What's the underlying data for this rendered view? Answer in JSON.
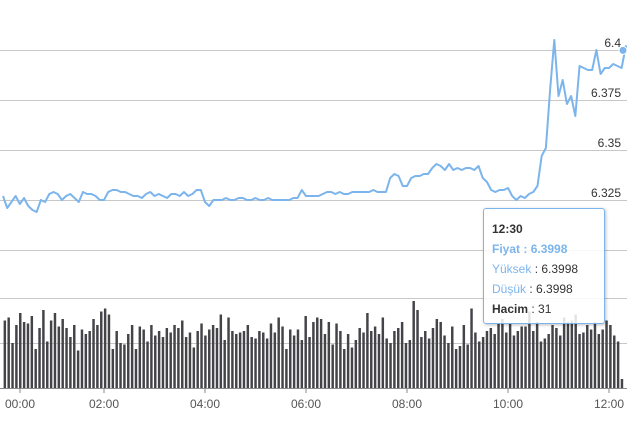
{
  "chart_data": {
    "type": "line",
    "colors": {
      "price": "#7cb5ec",
      "volume": "#434348",
      "grid": "#c8c8c8"
    },
    "y_ticks": [
      "6.325",
      "6.35",
      "6.375",
      "6.4"
    ],
    "ylim": [
      6.3,
      6.41
    ],
    "x_ticks": [
      "00:00",
      "02:00",
      "04:00",
      "06:00",
      "08:00",
      "10:00",
      "12:00"
    ],
    "price_series": {
      "t_start_hours": 0,
      "t_step_minutes": 5,
      "values": [
        6.327,
        6.321,
        6.324,
        6.327,
        6.323,
        6.326,
        6.322,
        6.32,
        6.319,
        6.325,
        6.324,
        6.328,
        6.329,
        6.328,
        6.325,
        6.327,
        6.328,
        6.326,
        6.324,
        6.329,
        6.328,
        6.328,
        6.327,
        6.325,
        6.325,
        6.329,
        6.33,
        6.33,
        6.329,
        6.329,
        6.328,
        6.327,
        6.327,
        6.326,
        6.328,
        6.329,
        6.327,
        6.328,
        6.327,
        6.326,
        6.328,
        6.328,
        6.327,
        6.329,
        6.327,
        6.328,
        6.33,
        6.33,
        6.324,
        6.322,
        6.325,
        6.325,
        6.325,
        6.326,
        6.325,
        6.325,
        6.326,
        6.326,
        6.325,
        6.325,
        6.326,
        6.325,
        6.325,
        6.326,
        6.325,
        6.325,
        6.325,
        6.325,
        6.325,
        6.326,
        6.326,
        6.33,
        6.327,
        6.327,
        6.327,
        6.327,
        6.328,
        6.329,
        6.329,
        6.328,
        6.329,
        6.328,
        6.328,
        6.329,
        6.329,
        6.329,
        6.329,
        6.329,
        6.33,
        6.329,
        6.329,
        6.329,
        6.336,
        6.338,
        6.337,
        6.332,
        6.332,
        6.336,
        6.337,
        6.337,
        6.338,
        6.338,
        6.341,
        6.343,
        6.342,
        6.34,
        6.343,
        6.34,
        6.341,
        6.34,
        6.341,
        6.341,
        6.34,
        6.342,
        6.336,
        6.334,
        6.33,
        6.329,
        6.33,
        6.33,
        6.331,
        6.327,
        6.325,
        6.327,
        6.326,
        6.328,
        6.329,
        6.332,
        6.347,
        6.351,
        6.38,
        6.405,
        6.377,
        6.385,
        6.373,
        6.377,
        6.367,
        6.392,
        6.391,
        6.39,
        6.39,
        6.4,
        6.388,
        6.391,
        6.391,
        6.393,
        6.392,
        6.391,
        6.402,
        6.395,
        6.391,
        6.409,
        6.413,
        6.411,
        6.401,
        6.398,
        6.3998
      ],
      "last_time": "12:30"
    },
    "volume_series": {
      "values": [
        45,
        47,
        30,
        42,
        50,
        44,
        43,
        48,
        26,
        40,
        52,
        31,
        45,
        50,
        41,
        46,
        40,
        34,
        42,
        25,
        39,
        36,
        38,
        46,
        42,
        51,
        53,
        49,
        26,
        38,
        30,
        29,
        36,
        42,
        26,
        41,
        39,
        31,
        42,
        35,
        38,
        34,
        40,
        37,
        42,
        40,
        45,
        34,
        37,
        27,
        38,
        43,
        35,
        39,
        42,
        40,
        49,
        32,
        47,
        38,
        36,
        37,
        38,
        42,
        34,
        33,
        38,
        37,
        33,
        43,
        37,
        47,
        41,
        26,
        39,
        35,
        39,
        32,
        48,
        34,
        44,
        47,
        46,
        36,
        44,
        29,
        43,
        38,
        26,
        36,
        27,
        32,
        40,
        37,
        50,
        38,
        41,
        36,
        47,
        33,
        30,
        38,
        40,
        44,
        30,
        32,
        58,
        52,
        34,
        38,
        33,
        40,
        46,
        44,
        35,
        30,
        41,
        26,
        28,
        42,
        29,
        53,
        37,
        31,
        34,
        38,
        40,
        36,
        43,
        46,
        37,
        43,
        35,
        38,
        41,
        41,
        51,
        38,
        44,
        31,
        33,
        36,
        42,
        40,
        35,
        47,
        44,
        45,
        49,
        36,
        37,
        42,
        39,
        44,
        36,
        39,
        45,
        42,
        35,
        31,
        6
      ],
      "vmax": 60
    },
    "tooltip": {
      "time": "12:30",
      "price_label": "Fiyat",
      "price_value": "6.3998",
      "high_label": "Yüksek",
      "high_value": "6.3998",
      "low_label": "Düşük",
      "low_value": "6.3998",
      "volume_label": "Hacim",
      "volume_value": "31"
    }
  }
}
